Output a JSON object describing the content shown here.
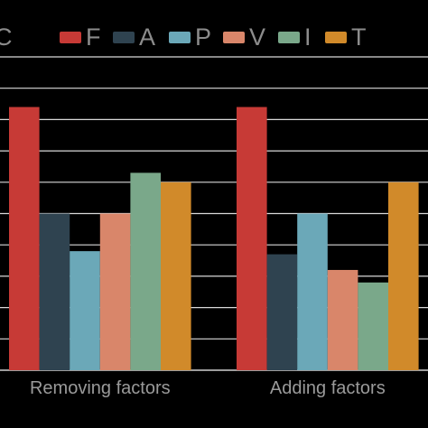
{
  "chart_data": {
    "type": "bar",
    "title": "C",
    "xlabel": "",
    "ylabel": "",
    "categories": [
      "Removing factors",
      "Adding factors"
    ],
    "ylim": [
      0,
      10
    ],
    "grid": true,
    "legend_position": "top",
    "series": [
      {
        "name": "F",
        "color": "#c73a36",
        "values": [
          8.4,
          8.4
        ]
      },
      {
        "name": "A",
        "color": "#2f4350",
        "values": [
          5.0,
          3.7
        ]
      },
      {
        "name": "P",
        "color": "#6ba8b8",
        "values": [
          3.8,
          5.0
        ]
      },
      {
        "name": "V",
        "color": "#d9866a",
        "values": [
          5.0,
          3.2
        ]
      },
      {
        "name": "I",
        "color": "#7aa88a",
        "values": [
          6.3,
          2.8
        ]
      },
      {
        "name": "T",
        "color": "#d18a2a",
        "values": [
          6.0,
          6.0
        ]
      }
    ]
  }
}
